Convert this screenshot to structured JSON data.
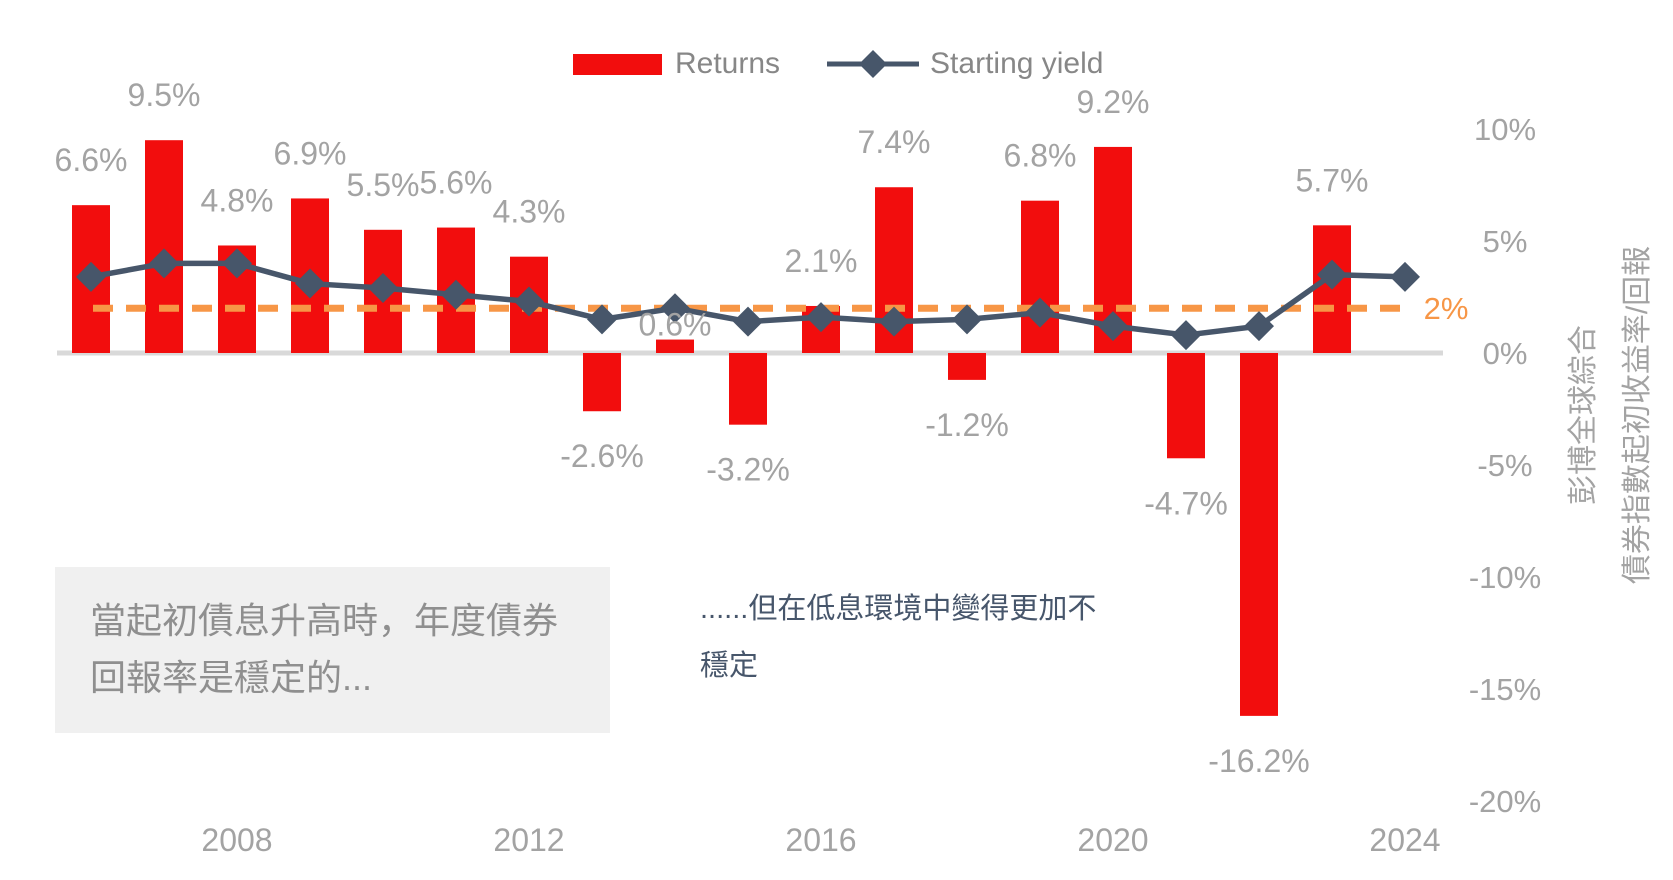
{
  "legend": {
    "returns_label": "Returns",
    "yield_label": "Starting yield"
  },
  "annotations": {
    "left_box": "當起初債息升高時，年度債券回報率是穩定的...",
    "right_note": "......但在低息環境中變得更加不穩定"
  },
  "colors": {
    "bar_red": "#F20D0D",
    "yield_line": "#47566A",
    "target_orange": "#F79646",
    "label_gray": "#A3A3A3",
    "legend_gray": "#878787",
    "box_bg": "#F0F0F0",
    "box_text": "#8F8F8F",
    "note_text": "#47566B",
    "baseline_gray": "#D9D9D9"
  },
  "chart_data": {
    "type": "bar+line",
    "x": [
      2006,
      2007,
      2008,
      2009,
      2010,
      2011,
      2012,
      2013,
      2014,
      2015,
      2016,
      2017,
      2018,
      2019,
      2020,
      2021,
      2022,
      2023,
      2024
    ],
    "series": [
      {
        "name": "Returns",
        "type": "bar",
        "color": "#F20D0D",
        "values": [
          6.6,
          9.5,
          4.8,
          6.9,
          5.5,
          5.6,
          4.3,
          -2.6,
          0.6,
          -3.2,
          2.1,
          7.4,
          -1.2,
          6.8,
          9.2,
          -4.7,
          -16.2,
          5.7,
          null
        ],
        "labels": [
          "6.6%",
          "9.5%",
          "4.8%",
          "6.9%",
          "5.5%",
          "5.6%",
          "4.3%",
          "-2.6%",
          "0.6%",
          "-3.2%",
          "2.1%",
          "7.4%",
          "-1.2%",
          "6.8%",
          "9.2%",
          "-4.7%",
          "-16.2%",
          "5.7%",
          ""
        ]
      },
      {
        "name": "Starting yield",
        "type": "line",
        "color": "#47566A",
        "values": [
          3.4,
          4.0,
          4.0,
          3.1,
          2.9,
          2.6,
          2.3,
          1.5,
          2.0,
          1.4,
          1.6,
          1.4,
          1.5,
          1.8,
          1.2,
          0.8,
          1.2,
          3.5,
          3.4
        ]
      }
    ],
    "reference_line": {
      "value": 2,
      "label": "2%",
      "color": "#F79646",
      "style": "dashed"
    },
    "y_axis": {
      "ticks": [
        10,
        5,
        0,
        -5,
        -10,
        -15,
        -20
      ],
      "tick_labels": [
        "10%",
        "5%",
        "0%",
        "-5%",
        "-10%",
        "-15%",
        "-20%"
      ],
      "range": [
        -20,
        10
      ],
      "title_line1": "彭博全球綜合",
      "title_line2": "債券指數起初收益率/回報"
    },
    "x_axis": {
      "tick_years": [
        2008,
        2012,
        2016,
        2020,
        2024
      ],
      "tick_labels": [
        "2008",
        "2012",
        "2016",
        "2020",
        "2024"
      ]
    },
    "grid": false,
    "legend_position": "top-center"
  }
}
